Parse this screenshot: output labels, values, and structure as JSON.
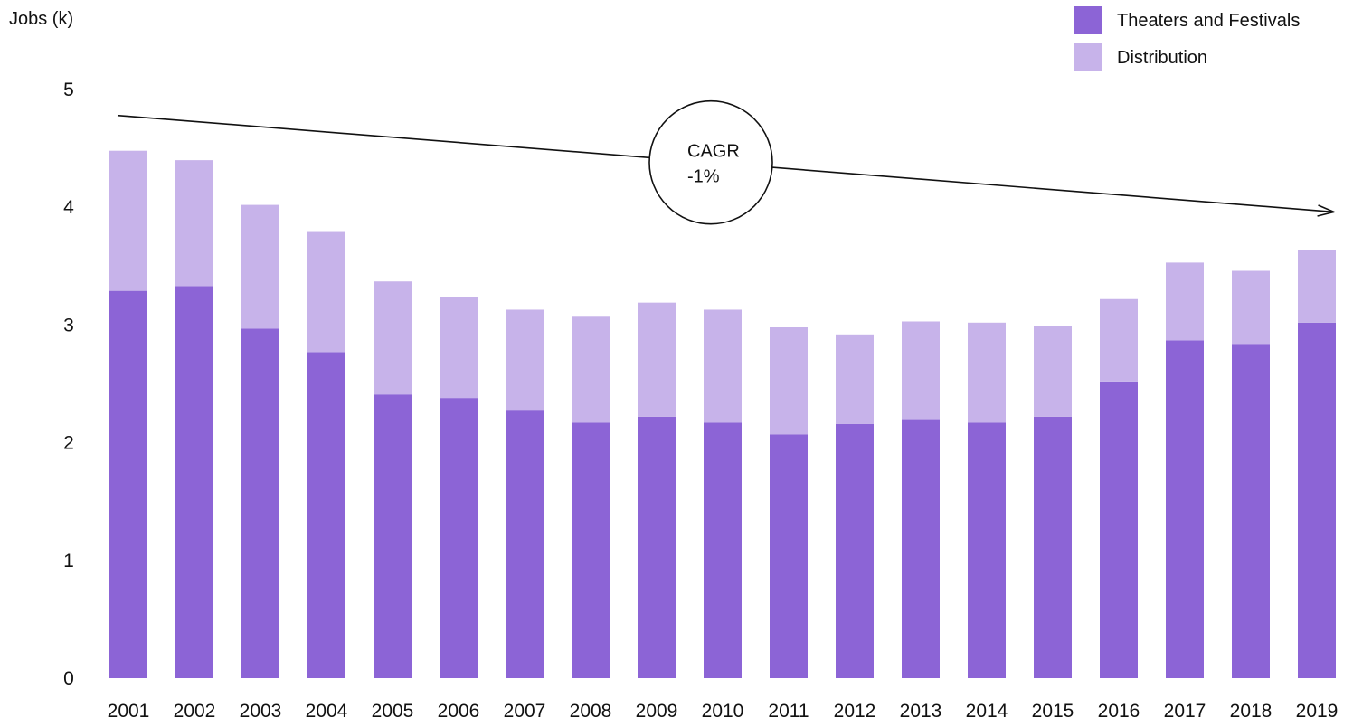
{
  "chart_data": {
    "type": "bar",
    "stacked": true,
    "title": "",
    "xlabel": "",
    "ylabel": "Jobs (k)",
    "ylim": [
      0,
      5
    ],
    "yticks": [
      0,
      1,
      2,
      3,
      4,
      5
    ],
    "grid": false,
    "legend_position": "top-right",
    "categories": [
      "2001",
      "2002",
      "2003",
      "2004",
      "2005",
      "2006",
      "2007",
      "2008",
      "2009",
      "2010",
      "2011",
      "2012",
      "2013",
      "2014",
      "2015",
      "2016",
      "2017",
      "2018",
      "2019"
    ],
    "series": [
      {
        "name": "Theaters and Festivals",
        "color": "#8c64d6",
        "values": [
          3.29,
          3.33,
          2.97,
          2.77,
          2.41,
          2.38,
          2.28,
          2.17,
          2.22,
          2.17,
          2.07,
          2.16,
          2.2,
          2.17,
          2.22,
          2.52,
          2.87,
          2.84,
          3.02
        ]
      },
      {
        "name": "Distribution",
        "color": "#c7b3ea",
        "values": [
          1.19,
          1.07,
          1.05,
          1.02,
          0.96,
          0.86,
          0.85,
          0.9,
          0.97,
          0.96,
          0.91,
          0.76,
          0.83,
          0.85,
          0.77,
          0.7,
          0.66,
          0.62,
          0.62
        ]
      }
    ],
    "annotation": {
      "label_line1": "CAGR",
      "label_line2": "-1%",
      "start_value": 4.78,
      "end_value": 3.96
    }
  }
}
